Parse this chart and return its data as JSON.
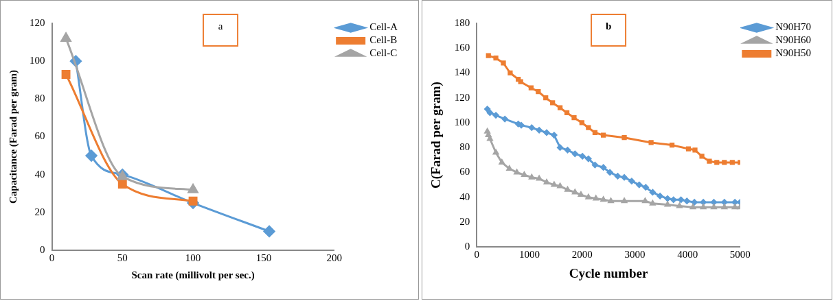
{
  "chart_data": [
    {
      "type": "line",
      "title": "a",
      "xlabel": "Scan rate (millivolt per sec.)",
      "ylabel": "Capacitance (Farad per gram)",
      "xlim": [
        0,
        200
      ],
      "xticks": [
        0,
        50,
        100,
        150,
        200
      ],
      "ylim": [
        0,
        120
      ],
      "yticks": [
        0,
        20,
        40,
        60,
        80,
        100,
        120
      ],
      "grid": false,
      "legend": "top right",
      "series": [
        {
          "name": "Cell-A",
          "color": "#5b9bd5",
          "marker": "diamond",
          "x": [
            17,
            28,
            50,
            100,
            154
          ],
          "values": [
            100,
            50,
            40,
            25,
            10
          ]
        },
        {
          "name": "Cell-B",
          "color": "#ed7d31",
          "marker": "square",
          "x": [
            10,
            50,
            100
          ],
          "values": [
            93,
            35,
            26
          ]
        },
        {
          "name": "Cell-C",
          "color": "#a5a5a5",
          "marker": "triangle",
          "x": [
            10,
            50,
            100
          ],
          "values": [
            112,
            39,
            32
          ]
        }
      ]
    },
    {
      "type": "line",
      "title": "b",
      "xlabel": "Cycle number",
      "ylabel": "C(Farad per gram)",
      "xlim": [
        0,
        5000
      ],
      "xticks": [
        0,
        1000,
        2000,
        3000,
        4000,
        5000
      ],
      "ylim": [
        0,
        180
      ],
      "yticks": [
        0,
        20,
        40,
        60,
        80,
        100,
        120,
        140,
        160,
        180
      ],
      "grid": false,
      "legend": "top right",
      "series": [
        {
          "name": "N90H70",
          "color": "#5b9bd5",
          "marker": "diamond",
          "x": [
            200,
            250,
            362,
            533,
            787,
            844,
            1043,
            1184,
            1326,
            1468,
            1581,
            1723,
            1864,
            2006,
            2119,
            2244,
            2403,
            2527,
            2675,
            2800,
            2941,
            3083,
            3207,
            3338,
            3479,
            3621,
            3734,
            3876,
            3989,
            4131,
            4300,
            4500,
            4700,
            4900,
            5000
          ],
          "values": [
            111,
            108,
            106,
            103,
            99,
            98,
            96,
            94,
            92,
            90,
            80,
            78,
            75,
            73,
            71,
            66,
            64,
            60,
            57,
            56,
            53,
            50,
            48,
            44,
            41,
            39,
            38,
            38,
            37,
            36,
            36,
            36,
            36,
            36,
            36
          ]
        },
        {
          "name": "N90H60",
          "color": "#a5a5a5",
          "marker": "triangle",
          "x": [
            200,
            220,
            250,
            362,
            476,
            618,
            760,
            901,
            1043,
            1184,
            1326,
            1468,
            1581,
            1723,
            1864,
            1977,
            2119,
            2261,
            2403,
            2545,
            2800,
            3196,
            3338,
            3621,
            3848,
            4103,
            4300,
            4500,
            4700,
            4900,
            5000
          ],
          "values": [
            93,
            90,
            87,
            76,
            68,
            63,
            60,
            58,
            56,
            55,
            52,
            50,
            49,
            46,
            44,
            42,
            40,
            39,
            38,
            37,
            37,
            37,
            35,
            34,
            33,
            32,
            32,
            32,
            32,
            32,
            32
          ]
        },
        {
          "name": "N90H50",
          "color": "#ed7d31",
          "marker": "square",
          "x": [
            221,
            362,
            505,
            634,
            787,
            833,
            1031,
            1167,
            1309,
            1439,
            1581,
            1711,
            1847,
            1995,
            2119,
            2244,
            2403,
            2800,
            3309,
            3706,
            4018,
            4142,
            4273,
            4415,
            4556,
            4700,
            4850,
            5000
          ],
          "values": [
            154,
            152,
            148,
            140,
            135,
            133,
            128,
            125,
            120,
            116,
            112,
            108,
            104,
            100,
            96,
            92,
            90,
            88,
            84,
            82,
            79,
            78,
            73,
            69,
            68,
            68,
            68,
            68
          ]
        }
      ]
    }
  ]
}
